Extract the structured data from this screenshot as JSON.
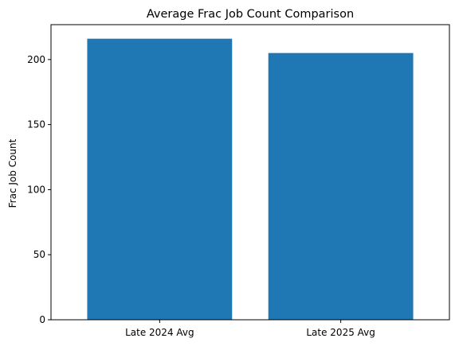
{
  "chart_data": {
    "type": "bar",
    "title": "Average Frac Job Count Comparison",
    "xlabel": "",
    "ylabel": "Frac Job Count",
    "categories": [
      "Late 2024 Avg",
      "Late 2025 Avg"
    ],
    "values": [
      216,
      205
    ],
    "ylim": [
      0,
      226.8
    ],
    "yticks": [
      0,
      50,
      100,
      150,
      200
    ],
    "grid": false,
    "bar_color": "#1f77b4"
  }
}
